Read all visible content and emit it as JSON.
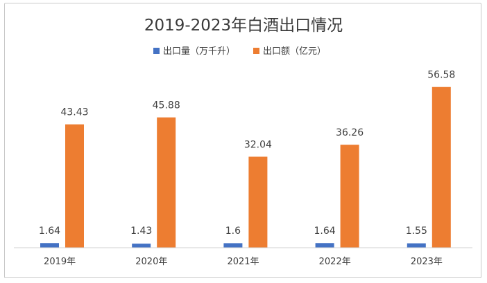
{
  "chart_data": {
    "type": "bar",
    "title": "2019-2023年白酒出口情况",
    "categories": [
      "2019年",
      "2020年",
      "2021年",
      "2022年",
      "2023年"
    ],
    "series": [
      {
        "name": "出口量（万千升）",
        "values": [
          1.64,
          1.43,
          1.6,
          1.64,
          1.55
        ],
        "labels": [
          "1.64",
          "1.43",
          "1.6",
          "1.64",
          "1.55"
        ],
        "color": "#4472c4"
      },
      {
        "name": "出口额（亿元）",
        "values": [
          43.43,
          45.88,
          32.04,
          36.26,
          56.58
        ],
        "labels": [
          "43.43",
          "45.88",
          "32.04",
          "36.26",
          "56.58"
        ],
        "color": "#ed7d31"
      }
    ],
    "ylim": [
      0,
      60
    ],
    "grid": false,
    "legend": "top-center"
  }
}
